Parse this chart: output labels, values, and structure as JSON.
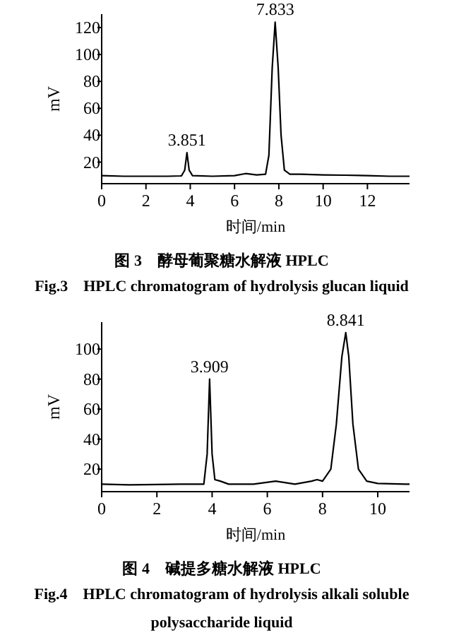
{
  "chart_data": [
    {
      "type": "line",
      "title": "图 3　酵母葡聚糖水解液 HPLC",
      "subtitle": "Fig.3　HPLC chromatogram of hydrolysis glucan liquid",
      "xlabel": "时间/min",
      "ylabel": "mV",
      "xlim": [
        0,
        13.9
      ],
      "ylim": [
        4,
        130
      ],
      "xticks": [
        0,
        2,
        4,
        6,
        8,
        10,
        12
      ],
      "yticks": [
        20,
        40,
        60,
        80,
        100,
        120
      ],
      "series": [
        {
          "color": "#000000",
          "x": [
            0,
            1,
            2,
            3,
            3.6,
            3.75,
            3.851,
            3.95,
            4.1,
            5,
            6,
            6.5,
            7,
            7.4,
            7.55,
            7.7,
            7.833,
            7.97,
            8.1,
            8.25,
            8.5,
            9,
            10,
            11,
            12,
            13,
            13.9
          ],
          "values": [
            10,
            9.5,
            9.5,
            9.5,
            9.8,
            14,
            27,
            14,
            10,
            9.5,
            10,
            11.5,
            10.5,
            11,
            25,
            90,
            124,
            90,
            40,
            14,
            11,
            11,
            10.5,
            10.3,
            10,
            9.5,
            9.5
          ]
        }
      ],
      "annotations": [
        {
          "text": "3.851",
          "x": 3.851,
          "y": 27
        },
        {
          "text": "7.833",
          "x": 7.833,
          "y": 124
        }
      ]
    },
    {
      "type": "line",
      "title": "图 4　碱提多糖水解液 HPLC",
      "subtitle": "Fig.4　HPLC chromatogram of hydrolysis alkali soluble polysaccharide liquid",
      "xlabel": "时间/min",
      "ylabel": "mV",
      "xlim": [
        0,
        11.15
      ],
      "ylim": [
        5,
        118
      ],
      "xticks": [
        0,
        2,
        4,
        6,
        8,
        10
      ],
      "yticks": [
        20,
        40,
        60,
        80,
        100
      ],
      "series": [
        {
          "color": "#000000",
          "x": [
            0,
            1,
            2,
            3,
            3.7,
            3.82,
            3.909,
            4,
            4.1,
            4.3,
            4.6,
            5.5,
            6.3,
            7,
            7.6,
            7.8,
            8,
            8.3,
            8.5,
            8.7,
            8.841,
            8.95,
            9.1,
            9.3,
            9.6,
            10,
            11,
            11.15
          ],
          "values": [
            10,
            9.5,
            9.8,
            10,
            10,
            30,
            80,
            30,
            13,
            12,
            10,
            10,
            12,
            10,
            12,
            13,
            12,
            20,
            50,
            95,
            111,
            95,
            50,
            20,
            12,
            10.5,
            10,
            10
          ]
        }
      ],
      "annotations": [
        {
          "text": "3.909",
          "x": 3.909,
          "y": 80
        },
        {
          "text": "8.841",
          "x": 8.841,
          "y": 111
        }
      ]
    }
  ]
}
